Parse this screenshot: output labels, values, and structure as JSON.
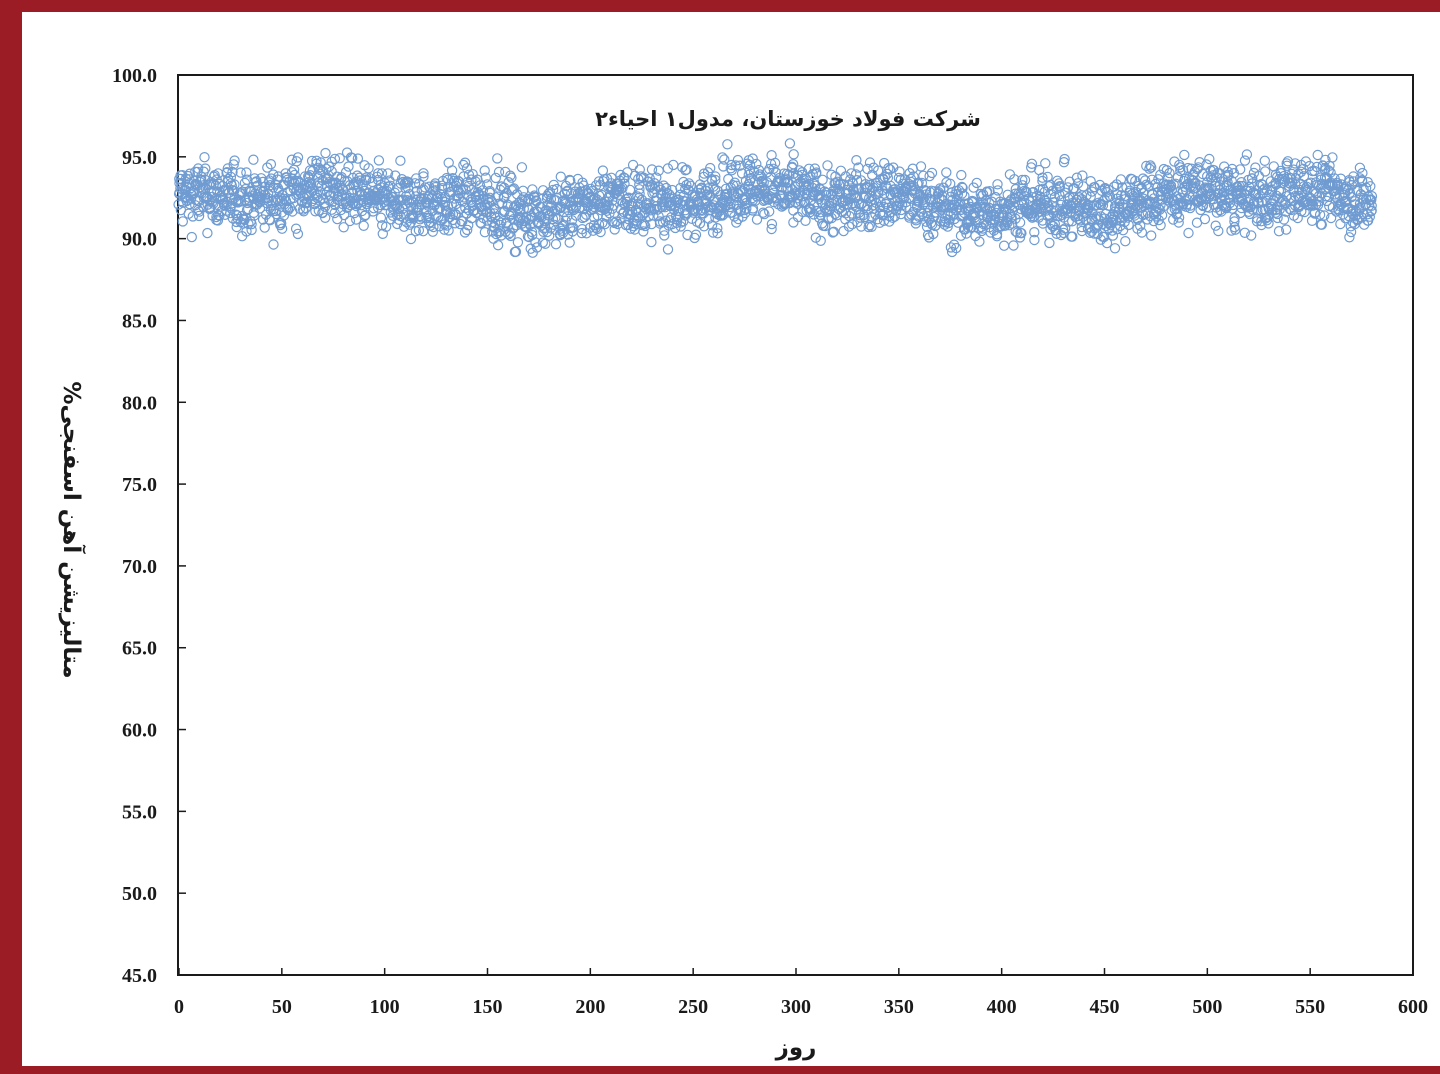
{
  "chart_data": {
    "type": "scatter",
    "title": "شرکت فولاد خوزستان، مدول۱ احیاء۲",
    "xlabel": "روز",
    "ylabel": "متالیزیشن آهن اسفنجی%",
    "xlim": [
      0,
      600
    ],
    "ylim": [
      45,
      100
    ],
    "x_ticks": [
      0,
      50,
      100,
      150,
      200,
      250,
      300,
      350,
      400,
      450,
      500,
      550,
      600
    ],
    "y_ticks": [
      45,
      50,
      55,
      60,
      65,
      70,
      75,
      80,
      85,
      90,
      95,
      100
    ],
    "y_tick_labels": [
      "45.0",
      "50.0",
      "55.0",
      "60.0",
      "65.0",
      "70.0",
      "75.0",
      "80.0",
      "85.0",
      "90.0",
      "95.0",
      "100.0"
    ],
    "grid": false,
    "marker": "hollow-circle",
    "series": [
      {
        "color": "#6f9bd1",
        "x_range": [
          0,
          580
        ],
        "points_per_day": 5,
        "approx_mean": 92.3,
        "approx_spread": 1.6,
        "y_min": 87.3,
        "y_max": 95.9
      }
    ]
  },
  "colors": {
    "frame": "#9b1c24",
    "marker": "#6f9bd1",
    "axis": "#1a1a1a",
    "background": "#ffffff"
  }
}
